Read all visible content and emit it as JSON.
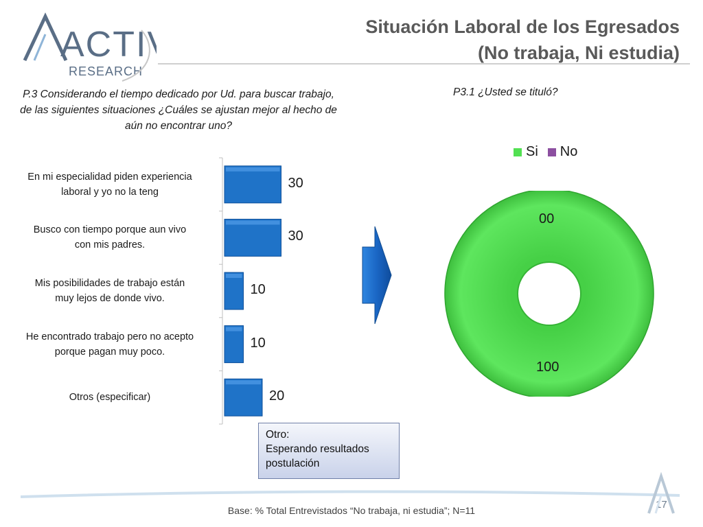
{
  "logo": {
    "word": "ACTIVA",
    "sub": "RESEARCH"
  },
  "header": {
    "title_line1": "Situación Laboral de los Egresados",
    "title_line2": "(No trabaja, Ni estudia)"
  },
  "left_question": "P.3  Considerando el tiempo dedicado por Ud. para buscar trabajo, de las siguientes situaciones ¿Cuáles se ajustan mejor al hecho de aún no encontrar uno?",
  "right_question": "P3.1 ¿Usted se tituló?",
  "otro_box": {
    "line1": "Otro:",
    "line2": "Esperando resultados",
    "line3": "postulación"
  },
  "footer": {
    "base": "Base: % Total Entrevistados “No trabaja, ni estudia”; N=11",
    "page": "17"
  },
  "colors": {
    "bar": "#1f73c8",
    "si": "#52e052",
    "no": "#8c4fa0",
    "arrow": "#1c6fd0"
  },
  "chart_data": [
    {
      "type": "bar",
      "orientation": "horizontal",
      "categories": [
        "En mi especialidad piden experiencia laboral y yo no la teng",
        "Busco con tiempo porque aun vivo con mis padres.",
        "Mis posibilidades de trabajo están muy lejos de donde vivo.",
        "He encontrado trabajo pero no acepto porque pagan muy poco.",
        "Otros (especificar)"
      ],
      "category_lines": [
        [
          "En mi especialidad piden experiencia",
          "laboral y yo no la teng"
        ],
        [
          "Busco con tiempo porque aun vivo",
          "con mis padres."
        ],
        [
          "Mis posibilidades de trabajo están",
          "muy lejos de donde vivo."
        ],
        [
          "He encontrado trabajo pero no acepto",
          "porque pagan muy poco."
        ],
        [
          "Otros (especificar)"
        ]
      ],
      "values": [
        30,
        30,
        10,
        10,
        20
      ],
      "data_labels": [
        "30",
        "30",
        "10",
        "10",
        "20"
      ]
    },
    {
      "type": "pie",
      "variant": "donut",
      "legend": [
        "Si",
        "No"
      ],
      "legend_position": "top",
      "values": [
        100,
        0
      ],
      "data_labels": [
        "100",
        "00"
      ]
    }
  ]
}
